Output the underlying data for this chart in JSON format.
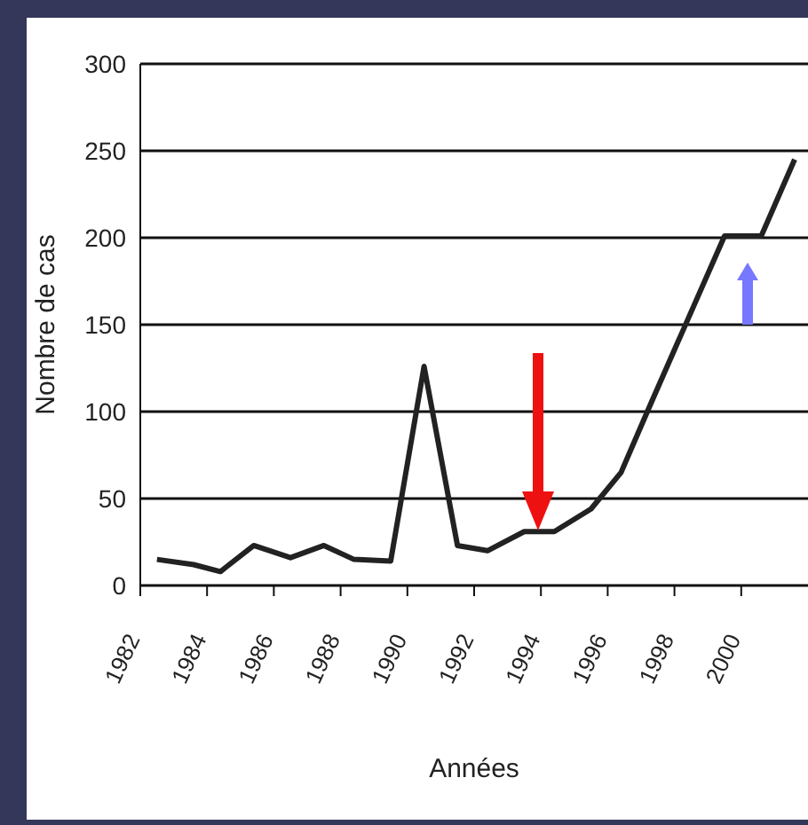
{
  "chart_data": {
    "type": "line",
    "xlabel": "Années",
    "ylabel": "Nombre de cas",
    "x": [
      1982.5,
      1983.6,
      1984.4,
      1985.4,
      1986.5,
      1987.5,
      1988.4,
      1989.5,
      1990.5,
      1991.5,
      1992.4,
      1993.5,
      1994.4,
      1995.5,
      1996.4,
      1997.3,
      1998.4,
      1999.5,
      2000.6,
      2001.6
    ],
    "series": [
      {
        "color": "#222222",
        "values": [
          15,
          12,
          8,
          23,
          16,
          23,
          15,
          14,
          126,
          23,
          20,
          31,
          31,
          44,
          65,
          105,
          153,
          201,
          201,
          245
        ]
      }
    ],
    "xlim": [
      1982,
      2002
    ],
    "xticks": [
      1982,
      1984,
      1986,
      1988,
      1990,
      1992,
      1994,
      1996,
      1998,
      2000
    ],
    "ylim": [
      0,
      300
    ],
    "yticks": [
      0,
      50,
      100,
      150,
      200,
      250,
      300
    ],
    "grid": "y"
  }
}
